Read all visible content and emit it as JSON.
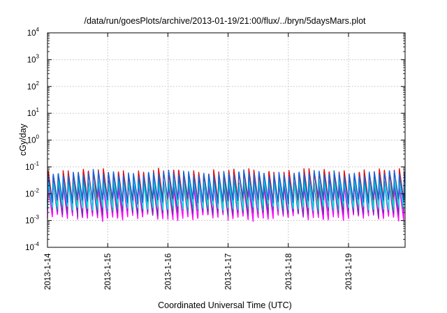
{
  "chart_data": {
    "type": "line",
    "title": "/data/run/goesPlots/archive/2013-01-19/21:00/flux/../bryn/5daysMars.plot",
    "xlabel": "Coordinated Universal Time (UTC)",
    "ylabel": "cGy/day",
    "yscale": "log",
    "ylim": [
      0.0001,
      10000
    ],
    "y_tick_base": "10",
    "y_tick_exponents": [
      "-4",
      "-3",
      "-2",
      "-1",
      "0",
      "1",
      "2",
      "3",
      "4"
    ],
    "xlim": [
      "2013-01-14 00:00",
      "2013-01-19 21:00"
    ],
    "x_tick_labels": [
      "2013-1-14",
      "2013-1-15",
      "2013-1-16",
      "2013-1-17",
      "2013-1-18",
      "2013-1-19"
    ],
    "grid": true,
    "cycles_per_day": 12,
    "series": [
      {
        "color": "#ff00ff",
        "peak": 0.022,
        "trough": 0.0012
      },
      {
        "color": "#7b2ab5",
        "peak": 0.028,
        "trough": 0.0018
      },
      {
        "color": "#e01010",
        "peak": 0.07,
        "trough": 0.0045
      },
      {
        "color": "#00aaaa",
        "peak": 0.032,
        "trough": 0.0028
      },
      {
        "color": "#00e0e0",
        "peak": 0.028,
        "trough": 0.003
      },
      {
        "color": "#1565d8",
        "peak": 0.06,
        "trough": 0.0055
      }
    ]
  }
}
